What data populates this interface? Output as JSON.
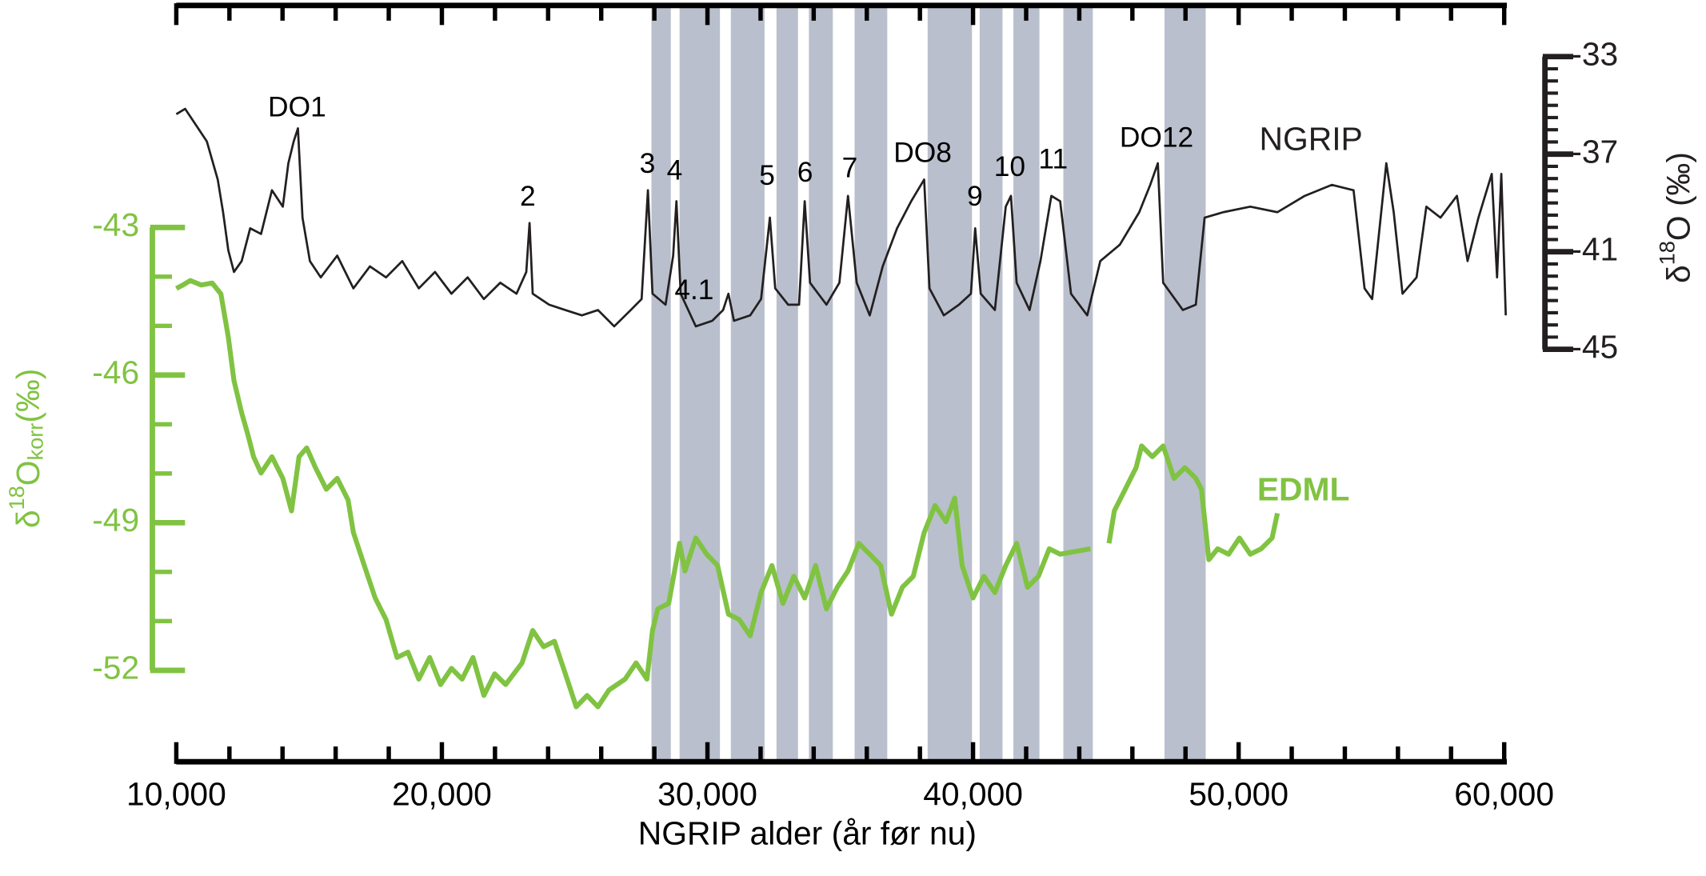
{
  "chart_data": {
    "type": "line",
    "xlabel": "NGRIP alder (år før nu)",
    "ylabel": {
      "prefix": "δ",
      "sup": "18",
      "base": "O",
      "sub": "korr",
      "suffix": "(‰)"
    },
    "y2label": {
      "prefix": "δ",
      "sup": "18",
      "base": "O",
      "suffix": " (‰)"
    },
    "xlim": [
      10000,
      60100
    ],
    "xticks": [
      {
        "value": 10000,
        "label": "10,000"
      },
      {
        "value": 20000,
        "label": "20,000"
      },
      {
        "value": 30000,
        "label": "30,000"
      },
      {
        "value": 40000,
        "label": "40,000"
      },
      {
        "value": 50000,
        "label": "50,000"
      },
      {
        "value": 60000,
        "label": "60,000"
      }
    ],
    "xminorticks": [
      12000,
      14000,
      16000,
      18000,
      22000,
      24000,
      26000,
      28000,
      32000,
      34000,
      36000,
      38000,
      42000,
      44000,
      46000,
      48000,
      52000,
      54000,
      56000,
      58000
    ],
    "ylim": [
      -52,
      -43
    ],
    "yticks": [
      -52,
      -49,
      -46,
      -43
    ],
    "yminorticks": [
      -51,
      -50,
      -48,
      -47,
      -45,
      -44
    ],
    "y2lim": [
      -45,
      -33
    ],
    "y2ticks": [
      -45,
      -41,
      -37,
      -33
    ],
    "y2minorticks": [
      -44.5,
      -44,
      -43.5,
      -43,
      -42.5,
      -42,
      -41.5,
      -40.5,
      -40,
      -39.5,
      -39,
      -38.5,
      -38,
      -37.5,
      -36.5,
      -36,
      -35.5,
      -35,
      -34.5,
      -34,
      -33.5
    ],
    "shaded_intervals": [
      [
        27890,
        28620
      ],
      [
        28950,
        30470
      ],
      [
        30880,
        32150
      ],
      [
        32600,
        33410
      ],
      [
        33820,
        34720
      ],
      [
        35540,
        36770
      ],
      [
        38290,
        39960
      ],
      [
        40250,
        41110
      ],
      [
        41520,
        42500
      ],
      [
        43400,
        44510
      ],
      [
        47210,
        48760
      ]
    ],
    "shade_color": "#b9bfcc",
    "annotations": [
      "DO1",
      "2",
      "3",
      "4",
      "4.1",
      "5",
      "6",
      "7",
      "DO8",
      "9",
      "10",
      "11",
      "DO12"
    ],
    "series": [
      {
        "name": "NGRIP",
        "color": "#231f20",
        "axis": "y2",
        "x": [
          10000,
          10330,
          10740,
          11150,
          11560,
          11760,
          11960,
          12170,
          12460,
          12780,
          13190,
          13600,
          14010,
          14220,
          14420,
          14580,
          14750,
          15030,
          15440,
          16060,
          16670,
          17290,
          17900,
          18510,
          19130,
          19740,
          20360,
          20970,
          21580,
          22200,
          22810,
          23180,
          23300,
          23420,
          24040,
          24650,
          25270,
          25880,
          26490,
          27110,
          27520,
          27760,
          27930,
          28420,
          28710,
          28830,
          28990,
          29560,
          30180,
          30590,
          30790,
          31000,
          31610,
          32020,
          32350,
          32550,
          33040,
          33450,
          33660,
          33860,
          34480,
          34970,
          35290,
          35620,
          36110,
          36600,
          37140,
          37670,
          38160,
          38360,
          38900,
          39470,
          39920,
          40080,
          40290,
          40820,
          41230,
          41430,
          41640,
          42130,
          42540,
          42950,
          43280,
          43690,
          44300,
          44790,
          45530,
          46260,
          46670,
          46960,
          47160,
          47900,
          48390,
          48720,
          49420,
          50440,
          51460,
          52490,
          53510,
          54330,
          54740,
          55030,
          55350,
          55560,
          55840,
          56170,
          56700,
          57070,
          57600,
          58220,
          58620,
          59030,
          59530,
          59730,
          59890,
          60060
        ],
        "values": [
          -35.36,
          -35.14,
          -35.81,
          -36.48,
          -38.04,
          -39.38,
          -40.94,
          -41.83,
          -41.38,
          -40.04,
          -40.27,
          -38.48,
          -39.15,
          -37.37,
          -36.48,
          -35.94,
          -39.6,
          -41.38,
          -42.05,
          -41.16,
          -42.5,
          -41.6,
          -42.05,
          -41.38,
          -42.5,
          -41.83,
          -42.72,
          -42.05,
          -42.94,
          -42.27,
          -42.72,
          -41.83,
          -39.82,
          -42.72,
          -43.17,
          -43.39,
          -43.61,
          -43.39,
          -44.06,
          -43.39,
          -42.94,
          -38.48,
          -42.72,
          -43.17,
          -41.16,
          -38.93,
          -42.72,
          -44.06,
          -43.83,
          -43.39,
          -42.72,
          -43.83,
          -43.61,
          -42.94,
          -39.6,
          -42.5,
          -43.17,
          -43.17,
          -38.93,
          -42.27,
          -43.17,
          -42.27,
          -38.71,
          -42.27,
          -43.61,
          -41.6,
          -40.04,
          -38.93,
          -38.04,
          -42.5,
          -43.61,
          -43.17,
          -42.72,
          -40.04,
          -42.72,
          -43.39,
          -39.15,
          -38.71,
          -42.27,
          -43.39,
          -41.38,
          -38.71,
          -38.93,
          -42.72,
          -43.61,
          -41.38,
          -40.71,
          -39.38,
          -38.26,
          -37.37,
          -42.27,
          -43.39,
          -43.17,
          -39.6,
          -39.38,
          -39.15,
          -39.38,
          -38.71,
          -38.26,
          -38.48,
          -42.5,
          -42.94,
          -39.6,
          -37.37,
          -39.38,
          -42.72,
          -42.05,
          -39.15,
          -39.6,
          -38.71,
          -41.38,
          -39.6,
          -37.81,
          -42.05,
          -37.81,
          -43.61
        ]
      },
      {
        "name": "EDML",
        "color": "#80c342",
        "x": [
          10000,
          10250,
          10530,
          10940,
          11350,
          11680,
          11960,
          12170,
          12460,
          12700,
          12910,
          13190,
          13600,
          14010,
          14340,
          14620,
          14910,
          15240,
          15650,
          16060,
          16470,
          16670,
          17080,
          17490,
          17900,
          18310,
          18720,
          19130,
          19540,
          19950,
          20360,
          20760,
          21170,
          21580,
          21990,
          22400,
          23020,
          23420,
          23830,
          24240,
          24650,
          25060,
          25470,
          25880,
          26290,
          26900,
          27310,
          27720,
          27930,
          28130,
          28540,
          28950,
          29150,
          29560,
          29970,
          30380,
          30790,
          31200,
          31610,
          32020,
          32430,
          32840,
          33250,
          33660,
          34070,
          34480,
          34890,
          35290,
          35700,
          36110,
          36520,
          36930,
          37340,
          37750,
          38160,
          38570,
          38980,
          39310,
          39590,
          40000,
          40410,
          40820,
          41230,
          41640,
          42050,
          42460,
          42870,
          43280,
          44420,
          44800,
          45120,
          45320,
          45730,
          46140,
          46350,
          46750,
          47160,
          47570,
          47980,
          48390,
          48600,
          48880,
          49210,
          49620,
          50030,
          50440,
          50850,
          51260,
          51460
        ],
        "values": [
          -44.24,
          -44.17,
          -44.08,
          -44.17,
          -44.13,
          -44.35,
          -45.23,
          -46.11,
          -46.77,
          -47.22,
          -47.66,
          -47.99,
          -47.66,
          -48.1,
          -48.76,
          -47.66,
          -47.48,
          -47.88,
          -48.32,
          -48.1,
          -48.54,
          -49.2,
          -49.87,
          -50.53,
          -50.97,
          -51.74,
          -51.63,
          -52.18,
          -51.74,
          -52.29,
          -51.96,
          -52.18,
          -51.74,
          -52.51,
          -52.07,
          -52.29,
          -51.85,
          -51.19,
          -51.52,
          -51.41,
          -52.07,
          -52.74,
          -52.51,
          -52.74,
          -52.4,
          -52.18,
          -51.85,
          -52.18,
          -51.19,
          -50.75,
          -50.64,
          -49.42,
          -49.98,
          -49.31,
          -49.64,
          -49.87,
          -50.86,
          -50.97,
          -51.3,
          -50.42,
          -49.87,
          -50.64,
          -50.09,
          -50.53,
          -49.87,
          -50.75,
          -50.31,
          -49.98,
          -49.42,
          -49.64,
          -49.87,
          -50.86,
          -50.31,
          -50.09,
          -49.2,
          -48.65,
          -48.98,
          -48.5,
          -49.87,
          -50.53,
          -50.09,
          -50.42,
          -49.87,
          -49.42,
          -50.31,
          -50.09,
          -49.53,
          -49.64,
          -49.53,
          null,
          -49.42,
          -48.76,
          -48.32,
          -47.88,
          -47.44,
          -47.66,
          -47.44,
          -48.1,
          -47.88,
          -48.1,
          -48.32,
          -49.75,
          -49.53,
          -49.64,
          -49.31,
          -49.64,
          -49.53,
          -49.31,
          -48.81
        ]
      }
    ]
  }
}
